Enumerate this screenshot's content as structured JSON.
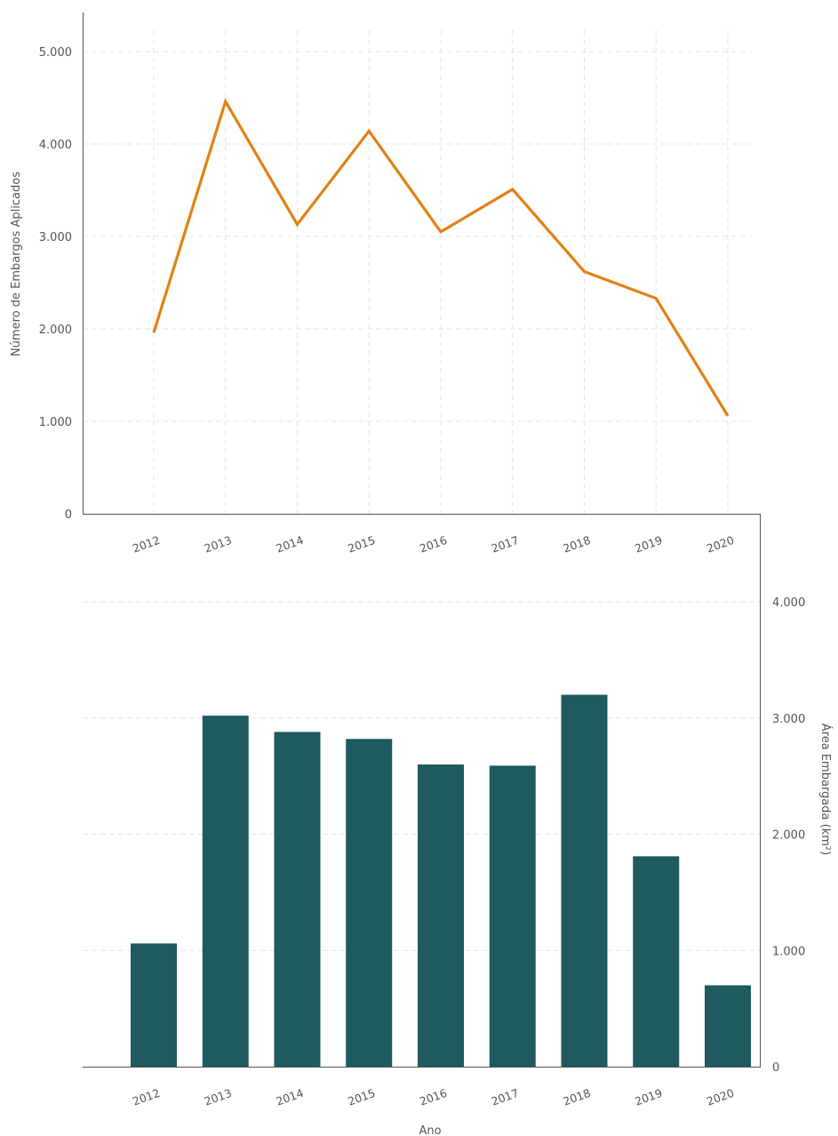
{
  "chart_data": [
    {
      "type": "line",
      "title": "",
      "xlabel": "",
      "ylabel": "Número de Embargos Aplicados",
      "categories": [
        "2012",
        "2013",
        "2014",
        "2015",
        "2016",
        "2017",
        "2018",
        "2019",
        "2020"
      ],
      "series": [
        {
          "values": [
            1960,
            4460,
            3130,
            4140,
            3050,
            3510,
            2620,
            2330,
            1060
          ],
          "color": "#E08214"
        }
      ],
      "ylim": [
        0,
        5000
      ],
      "yticks": [
        0,
        1000,
        2000,
        3000,
        4000,
        5000
      ],
      "ytick_labels": [
        "0",
        "1.000",
        "2.000",
        "3.000",
        "4.000",
        "5.000"
      ],
      "y_axis_side": "left",
      "grid": true
    },
    {
      "type": "bar",
      "title": "",
      "xlabel": "Ano",
      "ylabel": "Área Embargada (km²)",
      "categories": [
        "2012",
        "2013",
        "2014",
        "2015",
        "2016",
        "2017",
        "2018",
        "2019",
        "2020"
      ],
      "series": [
        {
          "values": [
            1060,
            3020,
            2880,
            2820,
            2600,
            2590,
            3200,
            1810,
            700
          ],
          "color": "#1E5A5E"
        }
      ],
      "ylim": [
        0,
        4000
      ],
      "yticks": [
        0,
        1000,
        2000,
        3000,
        4000
      ],
      "ytick_labels": [
        "0",
        "1.000",
        "2.000",
        "3.000",
        "4.000"
      ],
      "y_axis_side": "right",
      "grid": true
    }
  ]
}
